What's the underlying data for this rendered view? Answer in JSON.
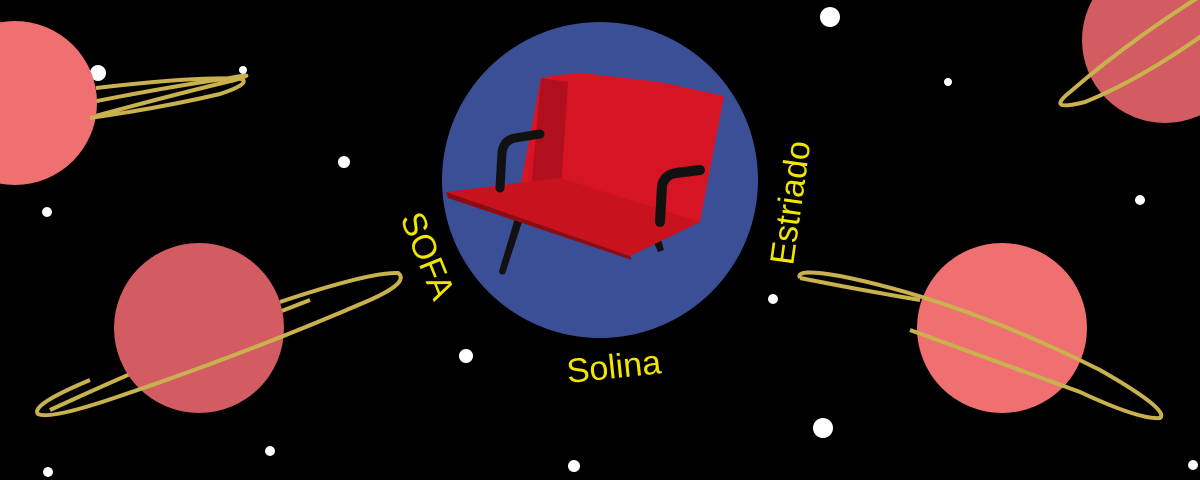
{
  "banner": {
    "labels": {
      "left": "SOFA",
      "bottom": "Solina",
      "right": "Estriado"
    },
    "colors": {
      "background": "#000000",
      "medallion": "#3b4f96",
      "planet": "#f07071",
      "planet_shade": "#d35c63",
      "ring": "#c9b24e",
      "text": "#f2e600",
      "star": "#ffffff",
      "seat": "#d61423",
      "frame": "#111111"
    }
  }
}
